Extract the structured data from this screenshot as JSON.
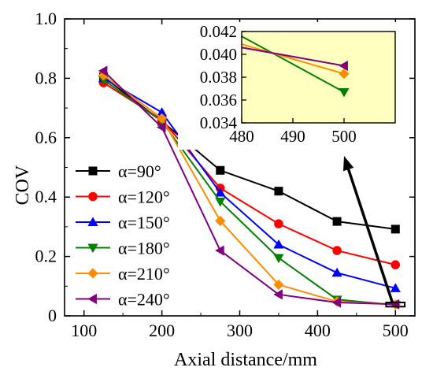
{
  "chart_data": {
    "type": "line",
    "xlabel": "Axial distance/mm",
    "ylabel": "COV",
    "xlim": [
      75,
      525
    ],
    "ylim": [
      0,
      1.0
    ],
    "xticks": [
      100,
      200,
      300,
      400,
      500
    ],
    "yticks": [
      0.0,
      0.2,
      0.4,
      0.6,
      0.8,
      1.0
    ],
    "xtick_labels": [
      "100",
      "200",
      "300",
      "400",
      "500"
    ],
    "ytick_labels": [
      "0",
      "0.2",
      "0.4",
      "0.6",
      "0.8",
      "1.0"
    ],
    "grid": false,
    "legend_position": "bottom-left",
    "x": [
      125,
      200,
      275,
      350,
      425,
      500
    ],
    "series": [
      {
        "name": "α=90°",
        "color": "#000000",
        "marker": "square",
        "values": [
          0.805,
          0.655,
          0.49,
          0.42,
          0.318,
          0.292
        ]
      },
      {
        "name": "α=120°",
        "color": "#ff0000",
        "marker": "circle",
        "values": [
          0.785,
          0.66,
          0.43,
          0.31,
          0.22,
          0.172
        ]
      },
      {
        "name": "α=150°",
        "color": "#0000ff",
        "marker": "triangle-up",
        "values": [
          0.8,
          0.685,
          0.415,
          0.24,
          0.145,
          0.093
        ]
      },
      {
        "name": "α=180°",
        "color": "#008000",
        "marker": "triangle-down",
        "values": [
          0.795,
          0.655,
          0.385,
          0.195,
          0.055,
          0.0367
        ]
      },
      {
        "name": "α=210°",
        "color": "#ff8c00",
        "marker": "diamond",
        "values": [
          0.81,
          0.665,
          0.32,
          0.105,
          0.048,
          0.0383
        ]
      },
      {
        "name": "α=240°",
        "color": "#800080",
        "marker": "triangle-left",
        "values": [
          0.825,
          0.635,
          0.22,
          0.072,
          0.045,
          0.039
        ]
      }
    ],
    "inset": {
      "xlim": [
        480,
        510
      ],
      "ylim": [
        0.034,
        0.042
      ],
      "xticks": [
        480,
        490,
        500
      ],
      "yticks": [
        0.034,
        0.036,
        0.038,
        0.04,
        0.042
      ],
      "xtick_labels": [
        "480",
        "490",
        "500"
      ],
      "ytick_labels": [
        "0.034",
        "0.036",
        "0.038",
        "0.040",
        "0.042"
      ],
      "background": "#ffffc0"
    },
    "zoom_box": {
      "x": [
        488,
        512
      ],
      "y": [
        0.031,
        0.045
      ]
    }
  }
}
